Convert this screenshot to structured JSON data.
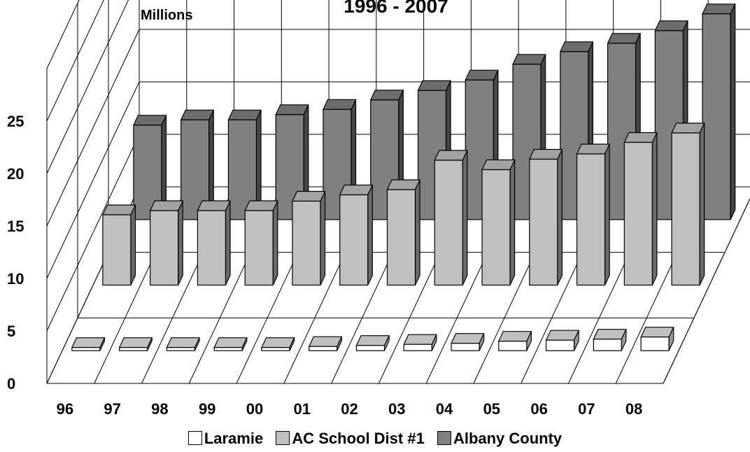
{
  "chart_data": {
    "type": "bar",
    "title": "1996 - 2007",
    "ylabel": "Millions",
    "xlabel": "",
    "categories": [
      "96",
      "97",
      "98",
      "99",
      "00",
      "01",
      "02",
      "03",
      "04",
      "05",
      "06",
      "07",
      "08"
    ],
    "yticks": [
      "0",
      "5",
      "10",
      "15",
      "20",
      "25"
    ],
    "ylim": [
      0,
      30
    ],
    "grid": true,
    "legend_position": "bottom",
    "series": [
      {
        "name": "Laramie",
        "color": "#ffffff",
        "values": [
          0.3,
          0.3,
          0.3,
          0.3,
          0.3,
          0.4,
          0.5,
          0.6,
          0.7,
          0.9,
          1.0,
          1.1,
          1.3
        ]
      },
      {
        "name": "AC School Dist #1",
        "color": "#c0c0c0",
        "values": [
          6.7,
          7.1,
          7.1,
          7.1,
          8.0,
          8.6,
          9.1,
          11.9,
          11.0,
          12.0,
          12.5,
          13.6,
          14.5
        ]
      },
      {
        "name": "Albany County",
        "color": "#808080",
        "values": [
          9.0,
          9.5,
          9.5,
          10.0,
          10.5,
          11.4,
          12.3,
          13.3,
          14.8,
          16.0,
          16.8,
          18.0,
          19.6
        ]
      }
    ]
  }
}
